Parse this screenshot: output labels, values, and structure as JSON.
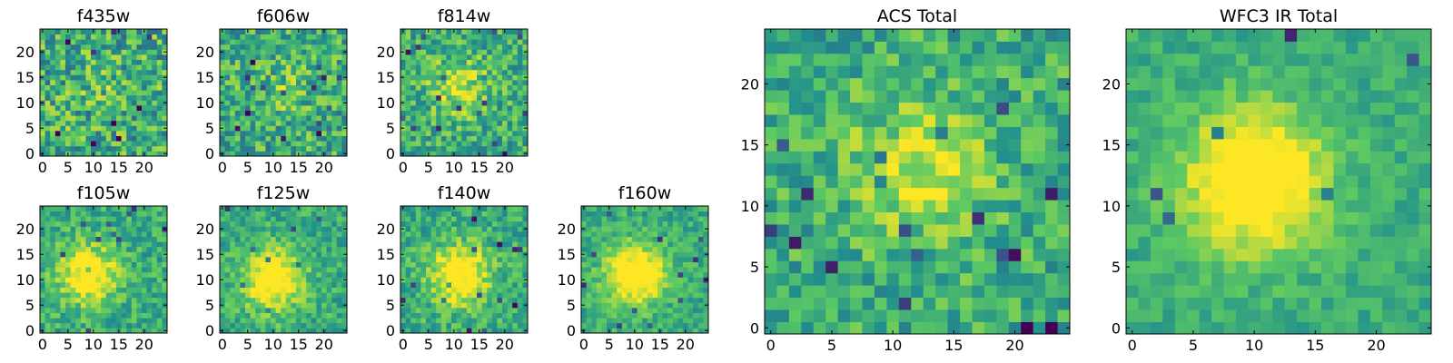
{
  "chart_data": [
    {
      "type": "heatmap",
      "title": "f435w",
      "xlim": [
        0,
        24
      ],
      "ylim": [
        0,
        24
      ],
      "xticks": [
        "0",
        "5",
        "10",
        "15",
        "20"
      ],
      "yticks": [
        "0",
        "5",
        "10",
        "15",
        "20"
      ],
      "peak": [
        12,
        12
      ],
      "peak_strength": 0.08,
      "noise": 0.5,
      "seed": 11
    },
    {
      "type": "heatmap",
      "title": "f606w",
      "xlim": [
        0,
        24
      ],
      "ylim": [
        0,
        24
      ],
      "xticks": [
        "0",
        "5",
        "10",
        "15",
        "20"
      ],
      "yticks": [
        "0",
        "5",
        "10",
        "15",
        "20"
      ],
      "peak": [
        12,
        13
      ],
      "peak_strength": 0.12,
      "noise": 0.45,
      "seed": 23
    },
    {
      "type": "heatmap",
      "title": "f814w",
      "xlim": [
        0,
        24
      ],
      "ylim": [
        0,
        24
      ],
      "xticks": [
        "0",
        "5",
        "10",
        "15",
        "20"
      ],
      "yticks": [
        "0",
        "5",
        "10",
        "15",
        "20"
      ],
      "peak": [
        11,
        13
      ],
      "peak_strength": 0.3,
      "noise": 0.4,
      "seed": 37
    },
    {
      "type": "heatmap",
      "title": "f105w",
      "xlim": [
        0,
        24
      ],
      "ylim": [
        0,
        24
      ],
      "xticks": [
        "0",
        "5",
        "10",
        "15",
        "20"
      ],
      "yticks": [
        "0",
        "5",
        "10",
        "15",
        "20"
      ],
      "peak": [
        9,
        11
      ],
      "peak_strength": 0.5,
      "noise": 0.3,
      "seed": 41
    },
    {
      "type": "heatmap",
      "title": "f125w",
      "xlim": [
        0,
        24
      ],
      "ylim": [
        0,
        24
      ],
      "xticks": [
        "0",
        "5",
        "10",
        "15",
        "20"
      ],
      "yticks": [
        "0",
        "5",
        "10",
        "15",
        "20"
      ],
      "peak": [
        10,
        10
      ],
      "peak_strength": 0.55,
      "noise": 0.28,
      "seed": 53
    },
    {
      "type": "heatmap",
      "title": "f140w",
      "xlim": [
        0,
        24
      ],
      "ylim": [
        0,
        24
      ],
      "xticks": [
        "0",
        "5",
        "10",
        "15",
        "20"
      ],
      "yticks": [
        "0",
        "5",
        "10",
        "15",
        "20"
      ],
      "peak": [
        11,
        11
      ],
      "peak_strength": 0.55,
      "noise": 0.3,
      "seed": 67
    },
    {
      "type": "heatmap",
      "title": "f160w",
      "xlim": [
        0,
        24
      ],
      "ylim": [
        0,
        24
      ],
      "xticks": [
        "0",
        "5",
        "10",
        "15",
        "20"
      ],
      "yticks": [
        "0",
        "5",
        "10",
        "15",
        "20"
      ],
      "peak": [
        10,
        11
      ],
      "peak_strength": 0.6,
      "noise": 0.25,
      "seed": 71
    },
    {
      "type": "heatmap",
      "title": "ACS Total",
      "xlim": [
        0,
        24
      ],
      "ylim": [
        0,
        24
      ],
      "xticks": [
        "0",
        "5",
        "10",
        "15",
        "20"
      ],
      "yticks": [
        "0",
        "5",
        "10",
        "15",
        "20"
      ],
      "peak": [
        12,
        13
      ],
      "peak_strength": 0.3,
      "noise": 0.35,
      "seed": 83
    },
    {
      "type": "heatmap",
      "title": "WFC3 IR Total",
      "xlim": [
        0,
        24
      ],
      "ylim": [
        0,
        24
      ],
      "xticks": [
        "0",
        "5",
        "10",
        "15",
        "20"
      ],
      "yticks": [
        "0",
        "5",
        "10",
        "15",
        "20"
      ],
      "peak": [
        10,
        12
      ],
      "peak_strength": 0.6,
      "noise": 0.18,
      "seed": 97
    }
  ],
  "colormap": [
    "#440154",
    "#3b528b",
    "#21908d",
    "#5dc963",
    "#fde725"
  ]
}
